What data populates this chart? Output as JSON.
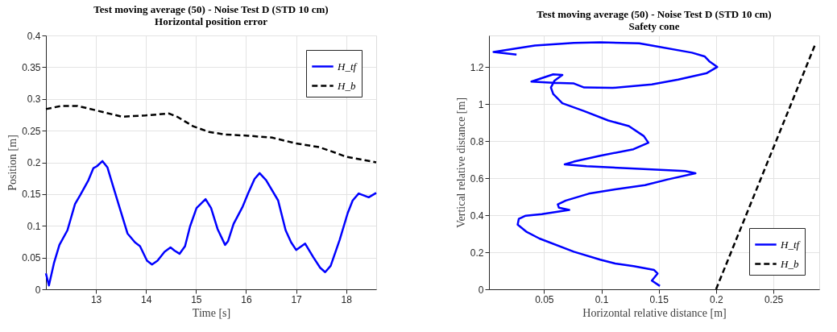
{
  "chart_data": [
    {
      "type": "line",
      "title": "Test moving average (50) - Noise Test D (STD 10 cm)",
      "subtitle": "Horizontal position error",
      "xlabel": "Time [s]",
      "ylabel": "Position [m]",
      "xlim": [
        12.0,
        18.6
      ],
      "ylim": [
        0,
        0.4
      ],
      "xticks": [
        13,
        14,
        15,
        16,
        17,
        18
      ],
      "yticks": [
        0,
        0.05,
        0.1,
        0.15,
        0.2,
        0.25,
        0.3,
        0.35,
        0.4
      ],
      "grid": true,
      "legend": "top right",
      "marker": "none",
      "series": [
        {
          "name": "H_tf",
          "color": "#0000ff",
          "line_style": "solid",
          "x": [
            12.0,
            12.06,
            12.16,
            12.27,
            12.43,
            12.58,
            12.69,
            12.85,
            12.95,
            13.02,
            13.13,
            13.23,
            13.34,
            13.46,
            13.63,
            13.78,
            13.88,
            14.02,
            14.12,
            14.23,
            14.37,
            14.49,
            14.57,
            14.67,
            14.78,
            14.88,
            15.01,
            15.19,
            15.3,
            15.43,
            15.58,
            15.64,
            15.75,
            15.93,
            16.04,
            16.17,
            16.27,
            16.4,
            16.64,
            16.79,
            16.9,
            17.0,
            17.18,
            17.34,
            17.48,
            17.58,
            17.69,
            17.87,
            18.03,
            18.13,
            18.25,
            18.45,
            18.6
          ],
          "values": [
            0.025,
            0.006,
            0.041,
            0.07,
            0.093,
            0.134,
            0.149,
            0.172,
            0.191,
            0.194,
            0.202,
            0.192,
            0.163,
            0.132,
            0.088,
            0.074,
            0.068,
            0.045,
            0.039,
            0.045,
            0.059,
            0.066,
            0.061,
            0.056,
            0.068,
            0.099,
            0.128,
            0.142,
            0.128,
            0.095,
            0.07,
            0.076,
            0.103,
            0.13,
            0.151,
            0.174,
            0.183,
            0.172,
            0.14,
            0.093,
            0.074,
            0.062,
            0.072,
            0.051,
            0.034,
            0.027,
            0.037,
            0.078,
            0.12,
            0.14,
            0.151,
            0.145,
            0.152
          ]
        },
        {
          "name": "H_b",
          "color": "#000000",
          "line_style": "dashed",
          "x": [
            12.0,
            12.31,
            12.63,
            13.0,
            13.52,
            13.99,
            14.46,
            14.62,
            14.94,
            15.26,
            15.57,
            16.04,
            16.52,
            16.99,
            17.46,
            17.72,
            17.99,
            18.6
          ],
          "values": [
            0.284,
            0.289,
            0.289,
            0.282,
            0.272,
            0.274,
            0.277,
            0.272,
            0.257,
            0.248,
            0.244,
            0.242,
            0.239,
            0.23,
            0.224,
            0.217,
            0.209,
            0.2
          ]
        }
      ]
    },
    {
      "type": "line",
      "title": "Test moving average (50) - Noise Test D (STD 10 cm)",
      "subtitle": "Safety cone",
      "xlabel": "Horizontal relative distance [m]",
      "ylabel": "Vertical relative distance [m]",
      "xlim": [
        0.002,
        0.29
      ],
      "ylim": [
        0,
        1.37
      ],
      "xticks": [
        0.05,
        0.1,
        0.15,
        0.2,
        0.25
      ],
      "yticks": [
        0,
        0.2,
        0.4,
        0.6,
        0.8,
        1,
        1.2
      ],
      "grid": true,
      "legend": "bottom right",
      "marker": "none",
      "series": [
        {
          "name": "H_tf",
          "color": "#0000ff",
          "line_style": "solid",
          "x": [
            0.151,
            0.144,
            0.149,
            0.146,
            0.128,
            0.112,
            0.099,
            0.076,
            0.046,
            0.035,
            0.027,
            0.028,
            0.034,
            0.048,
            0.072,
            0.063,
            0.062,
            0.069,
            0.089,
            0.112,
            0.138,
            0.158,
            0.182,
            0.173,
            0.133,
            0.087,
            0.068,
            0.076,
            0.099,
            0.128,
            0.141,
            0.137,
            0.124,
            0.106,
            0.085,
            0.066,
            0.058,
            0.056,
            0.059,
            0.066,
            0.058,
            0.039,
            0.058,
            0.076,
            0.085,
            0.11,
            0.144,
            0.167,
            0.192,
            0.201,
            0.194,
            0.19,
            0.179,
            0.144,
            0.133,
            0.099,
            0.076,
            0.042,
            0.006,
            0.026
          ],
          "values": [
            0.018,
            0.047,
            0.085,
            0.104,
            0.125,
            0.139,
            0.16,
            0.203,
            0.274,
            0.309,
            0.349,
            0.38,
            0.397,
            0.406,
            0.428,
            0.44,
            0.458,
            0.479,
            0.516,
            0.539,
            0.562,
            0.593,
            0.626,
            0.638,
            0.65,
            0.664,
            0.674,
            0.689,
            0.721,
            0.756,
            0.791,
            0.827,
            0.881,
            0.911,
            0.962,
            1.004,
            1.054,
            1.089,
            1.125,
            1.157,
            1.16,
            1.121,
            1.115,
            1.111,
            1.089,
            1.087,
            1.106,
            1.132,
            1.167,
            1.2,
            1.231,
            1.257,
            1.277,
            1.316,
            1.328,
            1.333,
            1.33,
            1.316,
            1.281,
            1.267
          ]
        },
        {
          "name": "H_b",
          "color": "#000000",
          "line_style": "dashed",
          "x": [
            0.2,
            0.287
          ],
          "values": [
            0.0,
            1.33
          ]
        }
      ]
    }
  ]
}
